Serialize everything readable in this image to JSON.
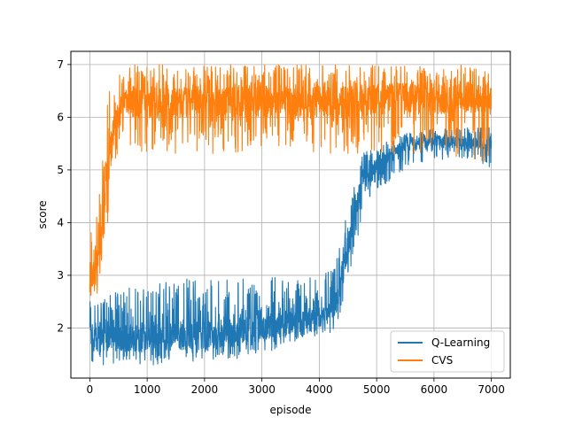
{
  "chart_data": {
    "type": "line",
    "title": "",
    "xlabel": "episode",
    "ylabel": "score",
    "xlim": [
      -330,
      7330
    ],
    "ylim": [
      1.05,
      7.25
    ],
    "xticks": [
      0,
      1000,
      2000,
      3000,
      4000,
      5000,
      6000,
      7000
    ],
    "yticks": [
      2,
      3,
      4,
      5,
      6,
      7
    ],
    "grid": true,
    "legend_position": "lower-right",
    "colors": {
      "q_learning": "#1f77b4",
      "cvs": "#ff7f0e",
      "grid": "#b0b0b0"
    },
    "series": [
      {
        "name": "Q-Learning",
        "color": "#1f77b4",
        "x": [
          0,
          250,
          500,
          750,
          1000,
          1250,
          1500,
          1750,
          2000,
          2250,
          2500,
          2750,
          3000,
          3250,
          3500,
          3750,
          4000,
          4250,
          4350,
          4500,
          4650,
          4750,
          5000,
          5250,
          5500,
          5750,
          6000,
          6250,
          6500,
          6750,
          7000
        ],
        "mean": [
          1.8,
          1.8,
          1.8,
          1.8,
          1.8,
          1.8,
          1.85,
          1.85,
          1.85,
          1.9,
          1.9,
          1.95,
          2.0,
          2.05,
          2.1,
          2.15,
          2.2,
          2.3,
          2.7,
          3.6,
          4.3,
          4.8,
          5.1,
          5.3,
          5.45,
          5.5,
          5.55,
          5.55,
          5.5,
          5.5,
          5.5
        ],
        "low": [
          1.3,
          1.3,
          1.3,
          1.3,
          1.3,
          1.3,
          1.35,
          1.35,
          1.35,
          1.4,
          1.4,
          1.45,
          1.5,
          1.6,
          1.7,
          1.8,
          1.85,
          1.9,
          2.2,
          2.9,
          3.6,
          4.2,
          4.6,
          4.8,
          5.0,
          5.1,
          5.2,
          5.2,
          5.2,
          5.2,
          5.0
        ],
        "high": [
          2.5,
          2.6,
          2.7,
          2.8,
          2.8,
          2.9,
          2.9,
          3.0,
          2.9,
          3.0,
          2.9,
          3.0,
          3.0,
          3.0,
          2.9,
          3.0,
          3.0,
          3.1,
          3.5,
          4.4,
          4.9,
          5.3,
          5.5,
          5.6,
          5.7,
          5.7,
          5.8,
          5.8,
          5.8,
          5.8,
          5.8
        ]
      },
      {
        "name": "CVS",
        "color": "#ff7f0e",
        "x": [
          0,
          50,
          100,
          150,
          200,
          250,
          300,
          350,
          400,
          450,
          500,
          600,
          700,
          800,
          1000,
          1500,
          2000,
          2500,
          3000,
          3500,
          4000,
          4500,
          5000,
          5500,
          6000,
          6500,
          7000
        ],
        "mean": [
          2.9,
          3.0,
          3.2,
          3.4,
          3.8,
          4.3,
          4.8,
          5.3,
          5.6,
          5.9,
          6.1,
          6.25,
          6.3,
          6.3,
          6.3,
          6.3,
          6.3,
          6.3,
          6.3,
          6.3,
          6.3,
          6.3,
          6.35,
          6.35,
          6.35,
          6.35,
          6.35
        ],
        "low": [
          2.4,
          2.5,
          2.6,
          2.7,
          3.1,
          3.5,
          3.8,
          4.5,
          4.9,
          5.2,
          5.3,
          5.4,
          5.4,
          5.3,
          5.3,
          5.3,
          5.3,
          5.3,
          5.3,
          5.4,
          5.3,
          5.3,
          5.3,
          5.3,
          5.3,
          5.2,
          5.1
        ],
        "high": [
          3.8,
          3.9,
          4.1,
          4.6,
          5.1,
          5.6,
          6.2,
          6.6,
          6.8,
          6.8,
          6.9,
          7.0,
          7.0,
          7.0,
          7.0,
          7.0,
          7.0,
          7.0,
          7.0,
          7.0,
          7.0,
          7.0,
          7.0,
          7.0,
          7.0,
          7.0,
          7.0
        ]
      }
    ]
  }
}
